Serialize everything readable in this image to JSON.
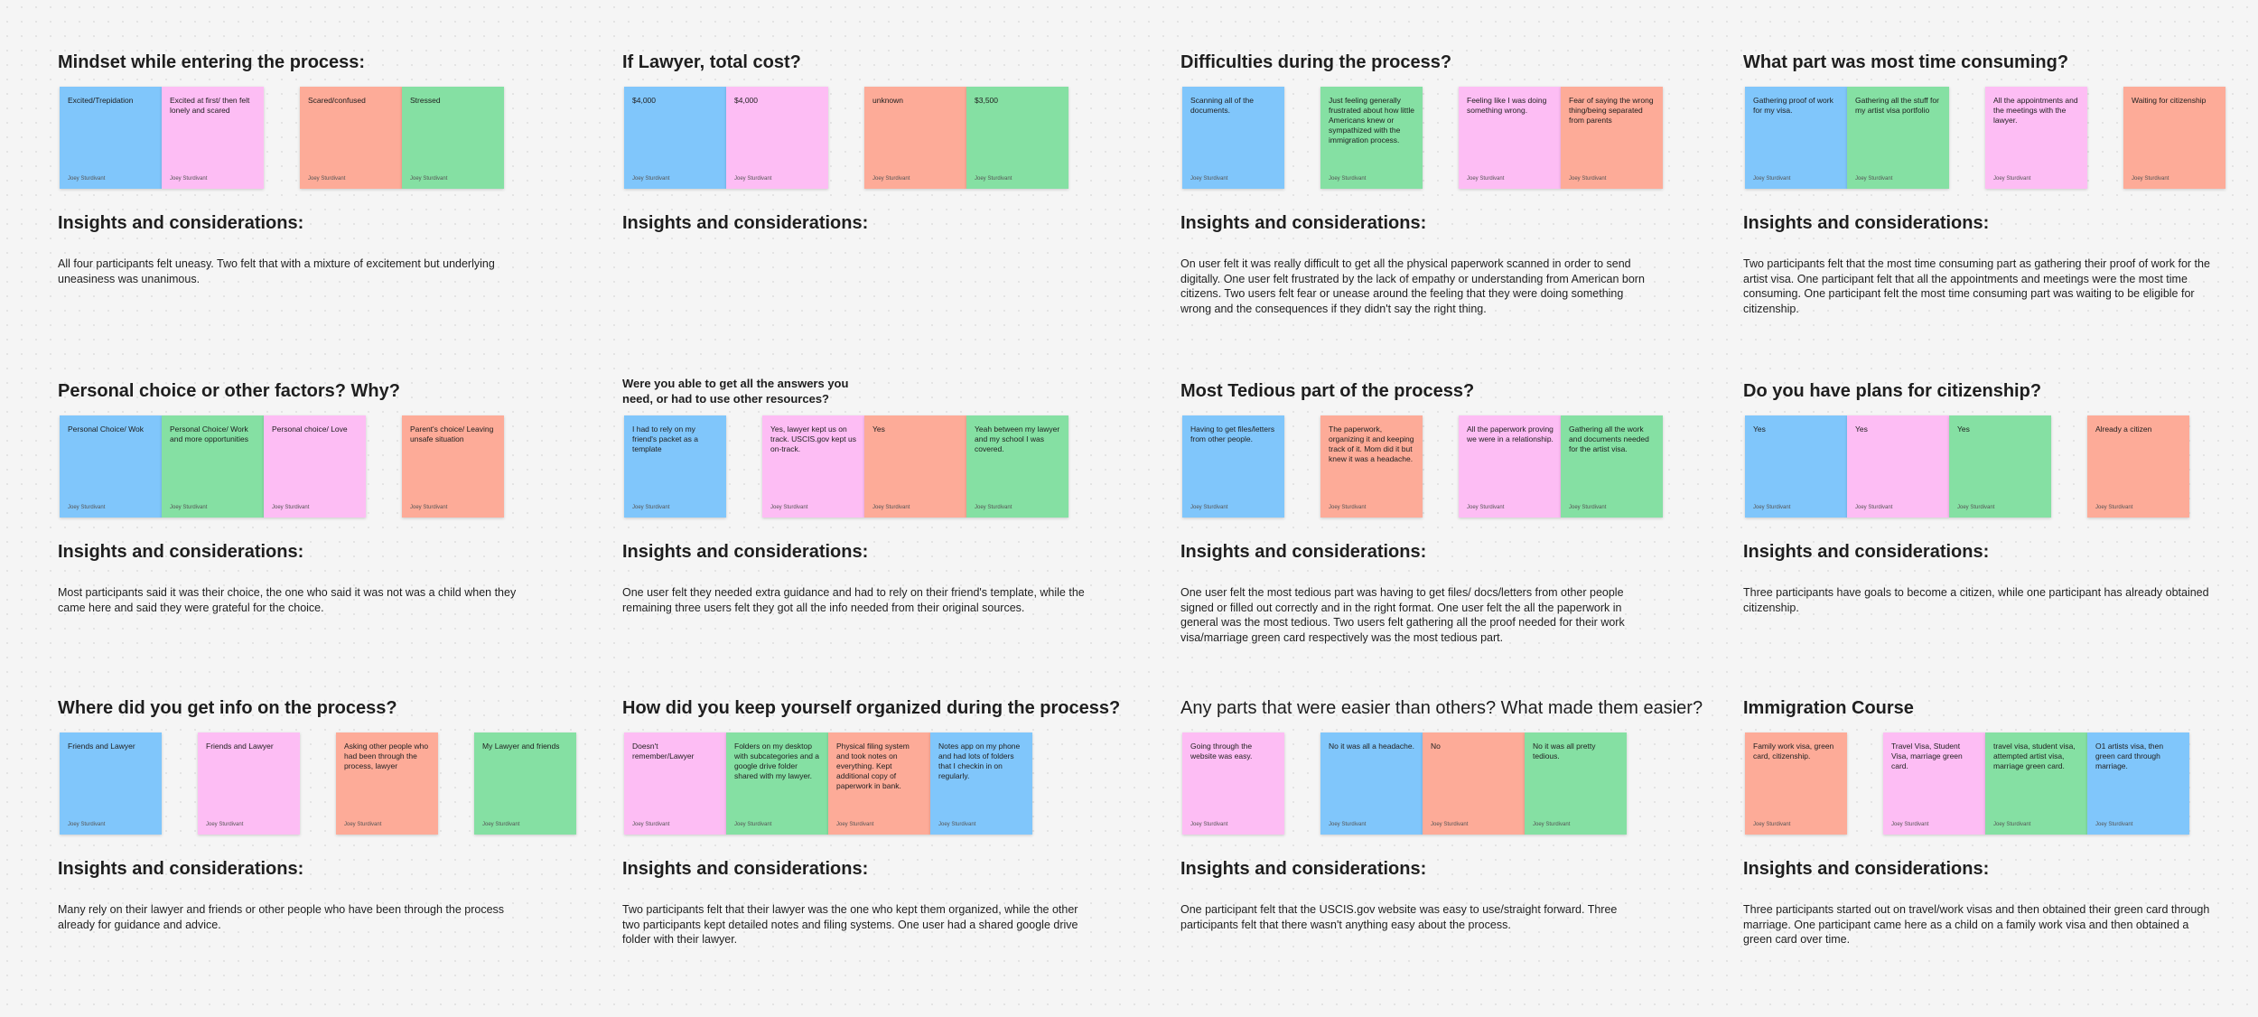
{
  "sections": [
    {
      "title": "Mindset while entering the process:",
      "groups": [
        [
          {
            "text": "Excited/Trepidation",
            "author": "Joey Sturdivant",
            "color": "#80c6fb"
          },
          {
            "text": "Excited at first/ then felt lonely and scared",
            "author": "Joey Sturdivant",
            "color": "#fdbdf4"
          }
        ],
        [
          {
            "text": "Scared/confused",
            "author": "Joey Sturdivant",
            "color": "#fdab98"
          },
          {
            "text": "Stressed",
            "author": "Joey Sturdivant",
            "color": "#85e0a3"
          }
        ]
      ],
      "insights_heading": "Insights and considerations:",
      "insights": "All four participants felt uneasy. Two felt that with a mixture of excitement but underlying uneasiness was unanimous."
    },
    {
      "title": "If Lawyer, total cost?",
      "groups": [
        [
          {
            "text": "$4,000",
            "author": "Joey Sturdivant",
            "color": "#80c6fb"
          },
          {
            "text": "$4,000",
            "author": "Joey Sturdivant",
            "color": "#fdbdf4"
          }
        ],
        [
          {
            "text": "unknown",
            "author": "Joey Sturdivant",
            "color": "#fdab98"
          },
          {
            "text": "$3,500",
            "author": "Joey Sturdivant",
            "color": "#85e0a3"
          }
        ]
      ],
      "insights_heading": "Insights and considerations:"
    },
    {
      "title": "Difficulties during the process?",
      "groups": [
        [
          {
            "text": "Scanning all of the documents.",
            "author": "Joey Sturdivant",
            "color": "#80c6fb"
          }
        ],
        [
          {
            "text": "Just feeling generally frustrated about how little Americans knew or sympathized with the immigration process.",
            "author": "Joey Sturdivant",
            "color": "#85e0a3"
          }
        ],
        [
          {
            "text": "Feeling like I was doing something wrong.",
            "author": "Joey Sturdivant",
            "color": "#fdbdf4"
          },
          {
            "text": "Fear of saying the wrong thing/being separated from parents",
            "author": "Joey Sturdivant",
            "color": "#fdab98"
          }
        ]
      ],
      "insights_heading": "Insights and considerations:",
      "insights": "On user felt it was really difficult to get all the physical paperwork scanned in order to send digitally. One user felt frustrated by the lack of empathy or understanding from American born citizens. Two users felt fear or unease around the feeling that they were doing something wrong and the consequences if they didn't say the right thing."
    },
    {
      "title": "What part was most time consuming?",
      "groups": [
        [
          {
            "text": "Gathering proof of work for my visa.",
            "author": "Joey Sturdivant",
            "color": "#80c6fb"
          },
          {
            "text": "Gathering all the stuff for my artist visa portfolio",
            "author": "Joey Sturdivant",
            "color": "#85e0a3"
          }
        ],
        [
          {
            "text": "All the appointments and the meetings with the lawyer.",
            "author": "Joey Sturdivant",
            "color": "#fdbdf4"
          }
        ],
        [
          {
            "text": "Waiting for citizenship",
            "author": "Joey Sturdivant",
            "color": "#fdab98"
          }
        ]
      ],
      "insights_heading": "Insights and considerations:",
      "insights": "Two participants felt that the most time consuming part as gathering their proof of work for the artist visa. One participant felt that all the appointments and meetings were the most time consuming. One participant felt the most time consuming part was waiting to be eligible for citizenship."
    },
    {
      "title": "Personal choice or other factors? Why?",
      "groups": [
        [
          {
            "text": "Personal Choice/ Wok",
            "author": "Joey Sturdivant",
            "color": "#80c6fb"
          },
          {
            "text": "Personal Choice/ Work and more opportunities",
            "author": "Joey Sturdivant",
            "color": "#85e0a3"
          },
          {
            "text": "Personal choice/ Love",
            "author": "Joey Sturdivant",
            "color": "#fdbdf4"
          }
        ],
        [
          {
            "text": "Parent's choice/ Leaving unsafe situation",
            "author": "Joey Sturdivant",
            "color": "#fdab98"
          }
        ]
      ],
      "insights_heading": "Insights and considerations:",
      "insights": "Most participants said it was their choice, the one who said it was not was a child when they came here and said they were grateful for the choice."
    },
    {
      "title": "Were you able to get all the answers you need, or had to use other resources?",
      "groups": [
        [
          {
            "text": "I had to rely on my friend's packet as a template",
            "author": "Joey Sturdivant",
            "color": "#80c6fb"
          }
        ],
        [
          {
            "text": "Yes, lawyer kept us on track. USCIS.gov kept us on-track.",
            "author": "Joey Sturdivant",
            "color": "#fdbdf4"
          },
          {
            "text": "Yes",
            "author": "Joey Sturdivant",
            "color": "#fdab98"
          },
          {
            "text": "Yeah between my lawyer and my school I was covered.",
            "author": "Joey Sturdivant",
            "color": "#85e0a3"
          }
        ]
      ],
      "insights_heading": "Insights and considerations:",
      "insights": "One user felt they needed extra guidance and had to rely on their friend's template, while the remaining three users felt they got all the info needed from their original sources."
    },
    {
      "title": "Most Tedious part of the process?",
      "groups": [
        [
          {
            "text": "Having to get files/letters from other people.",
            "author": "Joey Sturdivant",
            "color": "#80c6fb"
          }
        ],
        [
          {
            "text": "The paperwork, organizing it and keeping track of it. Mom did it but knew it was a headache.",
            "author": "Joey Sturdivant",
            "color": "#fdab98"
          }
        ],
        [
          {
            "text": "All the paperwork proving we were in a relationship.",
            "author": "Joey Sturdivant",
            "color": "#fdbdf4"
          },
          {
            "text": "Gathering all the work and documents needed for the artist visa.",
            "author": "Joey Sturdivant",
            "color": "#85e0a3"
          }
        ]
      ],
      "insights_heading": "Insights and considerations:",
      "insights": "One user felt the most tedious part was having to get files/ docs/letters from other people signed or filled out correctly and in the right format. One user felt the all the paperwork in general was the most tedious. Two users felt gathering all the proof needed for their work visa/marriage green card respectively was the most tedious part."
    },
    {
      "title": "Do you have plans for citizenship?",
      "groups": [
        [
          {
            "text": "Yes",
            "author": "Joey Sturdivant",
            "color": "#80c6fb"
          },
          {
            "text": "Yes",
            "author": "Joey Sturdivant",
            "color": "#fdbdf4"
          },
          {
            "text": "Yes",
            "author": "Joey Sturdivant",
            "color": "#85e0a3"
          }
        ],
        [
          {
            "text": "Already a citizen",
            "author": "Joey Sturdivant",
            "color": "#fdab98"
          }
        ]
      ],
      "insights_heading": "Insights and considerations:",
      "insights": "Three participants have goals to become a citizen, while one participant has already obtained citizenship."
    },
    {
      "title": "Where did you get info on the process?",
      "groups": [
        [
          {
            "text": "Friends and Lawyer",
            "author": "Joey Sturdivant",
            "color": "#80c6fb"
          }
        ],
        [
          {
            "text": "Friends and Lawyer",
            "author": "Joey Sturdivant",
            "color": "#fdbdf4"
          }
        ],
        [
          {
            "text": "Asking other people who had been through the process, lawyer",
            "author": "Joey Sturdivant",
            "color": "#fdab98"
          }
        ],
        [
          {
            "text": "My Lawyer and friends",
            "author": "Joey Sturdivant",
            "color": "#85e0a3"
          }
        ]
      ],
      "insights_heading": "Insights and considerations:",
      "insights": "Many rely on their lawyer and friends or other people who have been through the process already for guidance and advice."
    },
    {
      "title": "How did you keep yourself organized during the process?",
      "groups": [
        [
          {
            "text": "Doesn't remember/Lawyer",
            "author": "Joey Sturdivant",
            "color": "#fdbdf4"
          },
          {
            "text": "Folders on my desktop with subcategories and a google drive folder shared with my lawyer.",
            "author": "Joey Sturdivant",
            "color": "#85e0a3"
          },
          {
            "text": "Physical filing system and took notes on everything. Kept additional copy of paperwork in bank.",
            "author": "Joey Sturdivant",
            "color": "#fdab98"
          },
          {
            "text": "Notes app on my phone and had lots of folders that I checkin in on regularly.",
            "author": "Joey Sturdivant",
            "color": "#80c6fb"
          }
        ]
      ],
      "insights_heading": "Insights and considerations:",
      "insights": "Two participants felt that their lawyer was the one who kept them organized, while the other two participants kept detailed notes and filing systems. One user had a shared google drive folder with their lawyer."
    },
    {
      "title": "Any parts that were easier than others? What made them easier?",
      "groups": [
        [
          {
            "text": "Going through the website was easy.",
            "author": "Joey Sturdivant",
            "color": "#fdbdf4"
          }
        ],
        [
          {
            "text": "No it was all a headache.",
            "author": "Joey Sturdivant",
            "color": "#80c6fb"
          },
          {
            "text": "No",
            "author": "Joey Sturdivant",
            "color": "#fdab98"
          },
          {
            "text": "No it was all pretty tedious.",
            "author": "Joey Sturdivant",
            "color": "#85e0a3"
          }
        ]
      ],
      "insights_heading": "Insights and considerations:",
      "insights": "One participant felt that the USCIS.gov website was easy to use/straight forward. Three participants felt that there wasn't anything easy about the process."
    },
    {
      "title": "Immigration Course",
      "groups": [
        [
          {
            "text": "Family work visa, green card, citizenship.",
            "author": "Joey Sturdivant",
            "color": "#fdab98"
          }
        ],
        [
          {
            "text": "Travel Visa, Student Visa, marriage green card.",
            "author": "Joey Sturdivant",
            "color": "#fdbdf4"
          },
          {
            "text": "travel visa, student visa, attempted artist visa, marriage green card.",
            "author": "Joey Sturdivant",
            "color": "#85e0a3"
          },
          {
            "text": "O1 artists visa, then green card through marriage.",
            "author": "Joey Sturdivant",
            "color": "#80c6fb"
          }
        ]
      ],
      "insights_heading": "Insights and considerations:",
      "insights": "Three participants started out on travel/work visas and then obtained their green card through marriage. One participant came here as a child on a family work visa and then obtained a green card over time."
    }
  ]
}
